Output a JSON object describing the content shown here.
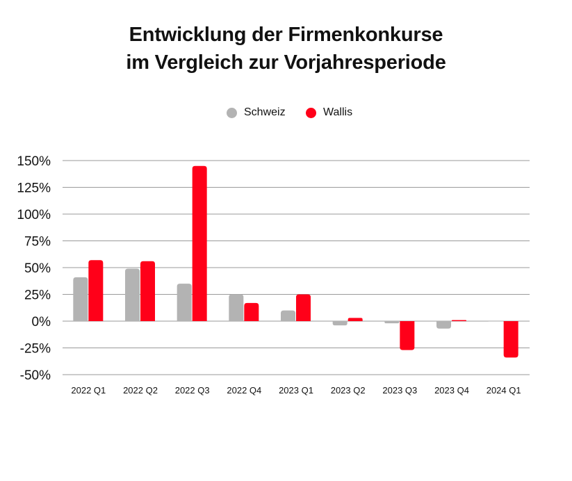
{
  "chart_data": {
    "type": "bar",
    "title_lines": [
      "Entwicklung der Firmenkonkurse",
      "im Vergleich zur Vorjahresperiode"
    ],
    "categories": [
      "2022 Q1",
      "2022 Q2",
      "2022 Q3",
      "2022 Q4",
      "2023 Q1",
      "2023 Q2",
      "2023 Q3",
      "2023 Q4",
      "2024 Q1"
    ],
    "series": [
      {
        "name": "Schweiz",
        "color": "#b3b3b3",
        "values": [
          41,
          49,
          35,
          25,
          10,
          -4,
          -2,
          -7,
          0
        ]
      },
      {
        "name": "Wallis",
        "color": "#ff0019",
        "values": [
          57,
          56,
          145,
          17,
          25,
          3,
          -27,
          1,
          -34
        ]
      }
    ],
    "ylim": [
      -50,
      150
    ],
    "yticks": [
      150,
      125,
      100,
      75,
      50,
      25,
      0,
      -25,
      -50
    ],
    "ytick_labels": [
      "150%",
      "125%",
      "100%",
      "75%",
      "50%",
      "25%",
      "0%",
      "-25%",
      "-50%"
    ],
    "grid": true,
    "legend_position": "top-center",
    "xlabel": "",
    "ylabel": ""
  }
}
